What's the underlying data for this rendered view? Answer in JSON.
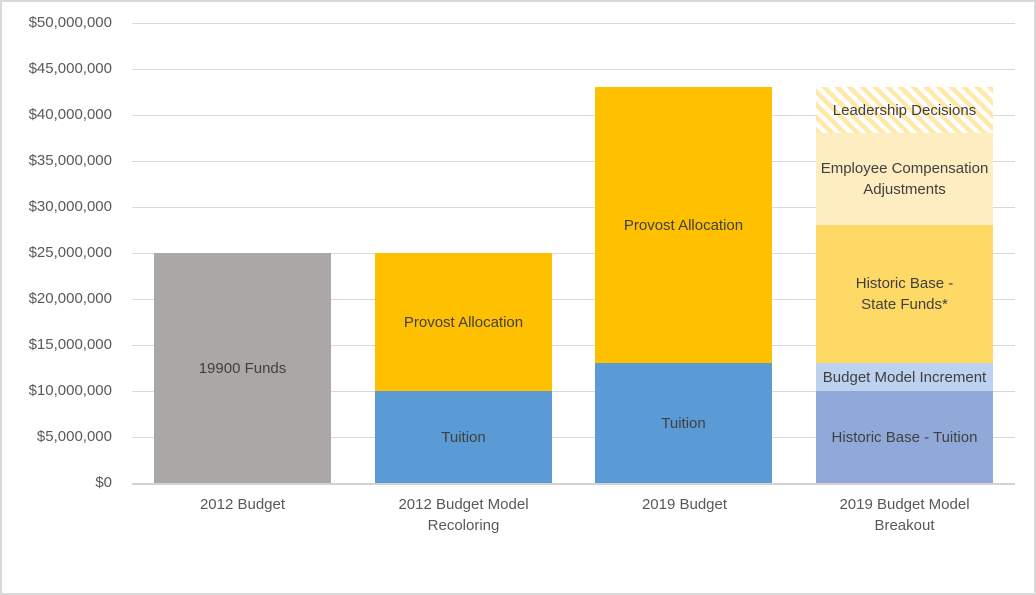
{
  "chart_data": {
    "type": "bar",
    "stacked": true,
    "title": "",
    "xlabel": "",
    "ylabel": "",
    "ylim": [
      0,
      50000000
    ],
    "y_tick_step": 5000000,
    "y_tick_labels": [
      "$0",
      "$5,000,000",
      "$10,000,000",
      "$15,000,000",
      "$20,000,000",
      "$25,000,000",
      "$30,000,000",
      "$35,000,000",
      "$40,000,000",
      "$45,000,000",
      "$50,000,000"
    ],
    "grid": true,
    "legend": "none",
    "categories": [
      "2012 Budget",
      "2012 Budget Model\nRecoloring",
      "2019 Budget",
      "2019 Budget Model\nBreakout"
    ],
    "bars": [
      {
        "category": "2012 Budget",
        "total": 25000000,
        "segments": [
          {
            "label": "19900 Funds",
            "value": 25000000,
            "color": "#aaa8a7"
          }
        ]
      },
      {
        "category": "2012 Budget Model Recoloring",
        "total": 25000000,
        "segments": [
          {
            "label": "Tuition",
            "value": 10000000,
            "color": "#5b9bd5"
          },
          {
            "label": "Provost Allocation",
            "value": 15000000,
            "color": "#ffc000"
          }
        ]
      },
      {
        "category": "2019 Budget",
        "total": 43000000,
        "segments": [
          {
            "label": "Tuition",
            "value": 13000000,
            "color": "#5b9bd5"
          },
          {
            "label": "Provost Allocation",
            "value": 30000000,
            "color": "#ffc000"
          }
        ]
      },
      {
        "category": "2019 Budget Model Breakout",
        "total": 43000000,
        "segments": [
          {
            "label": "Historic Base - Tuition",
            "value": 10000000,
            "color": "#90a9d9"
          },
          {
            "label": "Budget Model Increment",
            "value": 3000000,
            "color": "#bdd2ee"
          },
          {
            "label": "Historic Base -\nState Funds*",
            "value": 15000000,
            "color": "#ffd966"
          },
          {
            "label": "Employee Compensation\nAdjustments",
            "value": 10000000,
            "color": "#fdedc1"
          },
          {
            "label": "Leadership Decisions",
            "value": 5000000,
            "color": "#ffffff",
            "pattern": {
              "type": "diagonal-stripe",
              "stripe": "#ffe8a8",
              "background": "#ffffff"
            }
          }
        ]
      }
    ]
  },
  "styles": {
    "axis_text_color": "#595959",
    "segment_label_color": "#404040",
    "gridline_color": "#d9d9d9",
    "axis_line_color": "#d3d1d1",
    "chart_border_color": "#d9d9d9",
    "background_color": "#ffffff"
  }
}
